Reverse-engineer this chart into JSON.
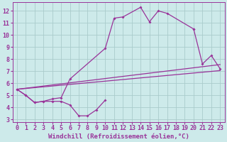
{
  "background_color": "#cdeaea",
  "grid_color": "#aacccc",
  "line_color": "#993399",
  "marker": "D",
  "markersize": 2,
  "linewidth": 0.9,
  "xlabel": "Windchill (Refroidissement éolien,°C)",
  "xlabel_fontsize": 6.5,
  "tick_fontsize": 6,
  "xlim": [
    -0.5,
    23.5
  ],
  "ylim": [
    2.8,
    12.7
  ],
  "yticks": [
    3,
    4,
    5,
    6,
    7,
    8,
    9,
    10,
    11,
    12
  ],
  "xticks": [
    0,
    1,
    2,
    3,
    4,
    5,
    6,
    7,
    8,
    9,
    10,
    11,
    12,
    13,
    14,
    15,
    16,
    17,
    18,
    19,
    20,
    21,
    22,
    23
  ],
  "line1_x": [
    0,
    1,
    2,
    3,
    4,
    5,
    6,
    7,
    8,
    9,
    10
  ],
  "line1_y": [
    5.5,
    5.0,
    4.4,
    4.5,
    4.5,
    4.5,
    4.2,
    3.3,
    3.3,
    3.8,
    4.6
  ],
  "line2_x": [
    0,
    1,
    2,
    3,
    4,
    5,
    6,
    10,
    11,
    12,
    14,
    15,
    16,
    17,
    20
  ],
  "line2_y": [
    5.5,
    5.0,
    4.4,
    4.5,
    4.7,
    4.8,
    6.35,
    8.9,
    11.4,
    11.5,
    12.3,
    11.1,
    12.0,
    11.8,
    10.5
  ],
  "line3_x": [
    0,
    23
  ],
  "line3_y": [
    5.5,
    7.05
  ],
  "line4_x": [
    0,
    23
  ],
  "line4_y": [
    5.5,
    7.55
  ],
  "line5_x": [
    20,
    21,
    22,
    23
  ],
  "line5_y": [
    10.5,
    7.6,
    8.3,
    7.2
  ]
}
